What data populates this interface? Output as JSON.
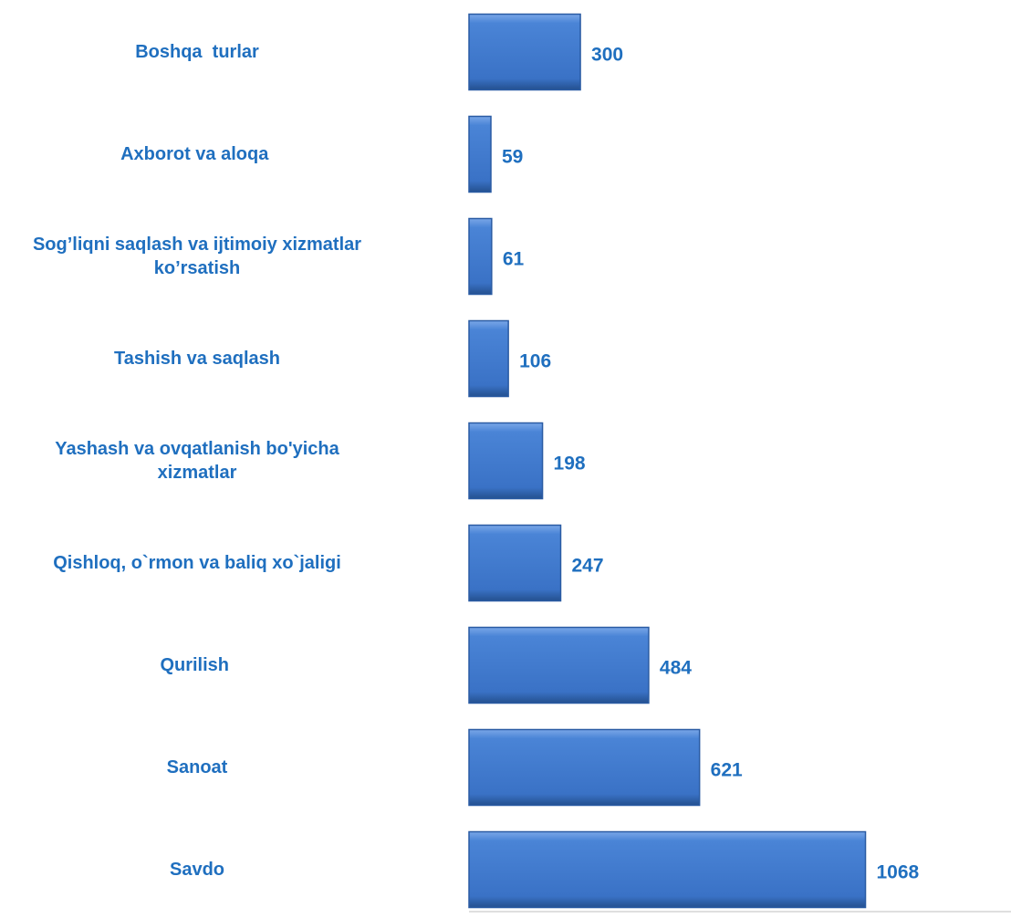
{
  "chart_data": {
    "type": "barh",
    "categories": [
      "Boshqa  turlar",
      "Axborot va aloqa ",
      "Sog’liqni saqlash va ijtimoiy xizmatlar\nko’rsatish",
      "Tashish va saqlash",
      "Yashash va ovqatlanish bo'yicha\nxizmatlar",
      "Qishloq, o`rmon va baliq xo`jaligi",
      "Qurilish ",
      "Sanoat",
      "Savdo"
    ],
    "values": [
      300,
      59,
      61,
      106,
      198,
      247,
      484,
      621,
      1068
    ],
    "color": "#3d78cc",
    "xlim": [
      0,
      1460
    ]
  }
}
